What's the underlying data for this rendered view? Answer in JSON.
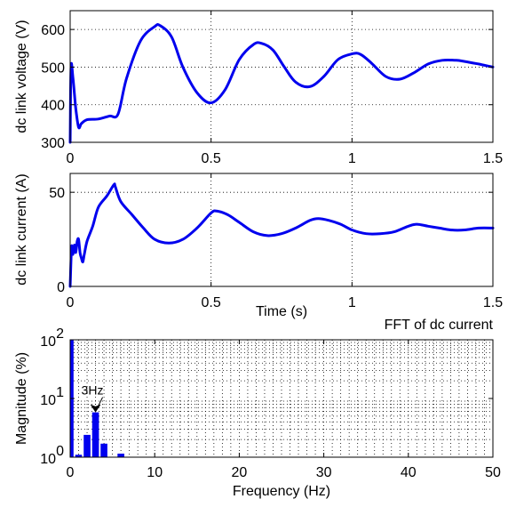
{
  "chart_data": [
    {
      "type": "line",
      "ylabel": "dc link voltage (V)",
      "xlim": [
        0,
        1.5
      ],
      "ylim": [
        300,
        650
      ],
      "xticks": [
        "0",
        "0.5",
        "1",
        "1.5"
      ],
      "yticks": [
        "300",
        "400",
        "500",
        "600"
      ],
      "grid": true,
      "series": [
        {
          "color": "#0000ee",
          "x": [
            0,
            0.003,
            0.01,
            0.02,
            0.03,
            0.04,
            0.06,
            0.1,
            0.14,
            0.17,
            0.2,
            0.25,
            0.3,
            0.32,
            0.36,
            0.4,
            0.45,
            0.5,
            0.55,
            0.6,
            0.65,
            0.68,
            0.72,
            0.76,
            0.8,
            0.85,
            0.9,
            0.95,
            1.0,
            1.03,
            1.07,
            1.12,
            1.17,
            1.22,
            1.27,
            1.32,
            1.37,
            1.4,
            1.45,
            1.5
          ],
          "y": [
            300,
            500,
            470,
            390,
            340,
            350,
            360,
            362,
            370,
            375,
            470,
            570,
            608,
            610,
            580,
            500,
            432,
            405,
            440,
            520,
            560,
            563,
            545,
            500,
            460,
            448,
            475,
            520,
            535,
            534,
            510,
            475,
            468,
            485,
            508,
            518,
            518,
            515,
            508,
            500
          ]
        }
      ]
    },
    {
      "type": "line",
      "ylabel": "dc link current (A)",
      "xlabel": "Time (s)",
      "xlim": [
        0,
        1.5
      ],
      "ylim": [
        0,
        60
      ],
      "xticks": [
        "0",
        "0.5",
        "1",
        "1.5"
      ],
      "yticks": [
        "0",
        "50"
      ],
      "grid": true,
      "series": [
        {
          "color": "#0000ee",
          "x": [
            0,
            0.005,
            0.01,
            0.015,
            0.02,
            0.025,
            0.03,
            0.035,
            0.04,
            0.045,
            0.05,
            0.06,
            0.08,
            0.1,
            0.13,
            0.155,
            0.16,
            0.18,
            0.22,
            0.26,
            0.3,
            0.35,
            0.4,
            0.45,
            0.5,
            0.52,
            0.56,
            0.6,
            0.65,
            0.7,
            0.75,
            0.8,
            0.85,
            0.88,
            0.92,
            0.96,
            1.0,
            1.05,
            1.1,
            1.15,
            1.2,
            1.23,
            1.27,
            1.31,
            1.35,
            1.4,
            1.45,
            1.5
          ],
          "y": [
            0,
            21,
            17,
            22,
            18,
            24,
            25,
            18,
            15,
            13,
            17,
            24,
            32,
            42,
            48,
            54,
            53,
            45,
            38,
            31,
            25,
            23,
            25,
            31,
            39,
            40,
            38,
            34,
            29,
            27,
            28,
            31,
            35,
            36,
            35,
            33,
            30,
            28,
            28,
            29,
            32,
            33,
            32,
            31,
            30,
            30,
            31,
            31
          ]
        }
      ]
    },
    {
      "type": "bar",
      "title": "FFT of dc current",
      "xlabel": "Frequency (Hz)",
      "ylabel": "Magnitude (%)",
      "xlim": [
        0,
        50
      ],
      "ylim": [
        1,
        100
      ],
      "yscale": "log",
      "xticks": [
        "0",
        "10",
        "20",
        "30",
        "40",
        "50"
      ],
      "yticks": [
        {
          "base": "10",
          "exp": "0"
        },
        {
          "base": "10",
          "exp": "1"
        },
        {
          "base": "10",
          "exp": "2"
        }
      ],
      "grid": true,
      "x": [
        0,
        1,
        2,
        3,
        4,
        5,
        6
      ],
      "values": [
        100,
        1.1,
        2.4,
        5.8,
        1.7,
        1.0,
        1.15
      ],
      "annotation": {
        "text": "3Hz",
        "x": 3,
        "y": 5.8
      }
    }
  ]
}
